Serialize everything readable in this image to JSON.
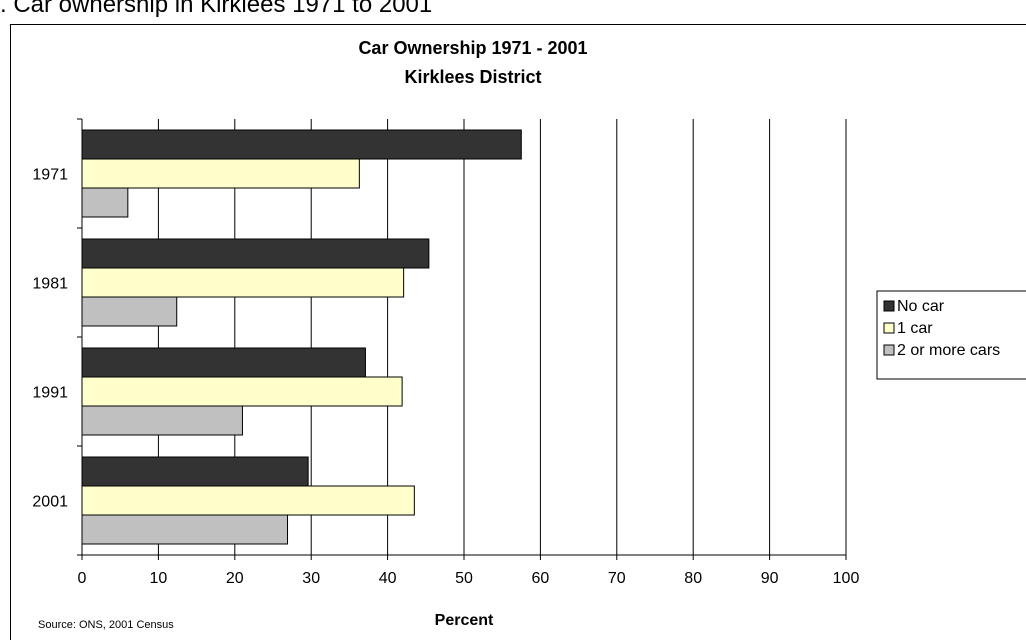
{
  "page": {
    "heading": ". Car ownership in Kirklees 1971 to 2001"
  },
  "chart_data": {
    "type": "bar",
    "orientation": "horizontal",
    "title": "Car Ownership 1971 - 2001",
    "subtitle": "Kirklees District",
    "xlabel": "Percent",
    "ylabel": "",
    "categories": [
      "1971",
      "1981",
      "1991",
      "2001"
    ],
    "series": [
      {
        "name": "No car",
        "values": [
          57.5,
          45.4,
          37.1,
          29.6
        ],
        "color": "#333333"
      },
      {
        "name": "1 car",
        "values": [
          36.3,
          42.1,
          41.9,
          43.5
        ],
        "color": "#FFFFCC"
      },
      {
        "name": "2 or more cars",
        "values": [
          6.0,
          12.4,
          21.0,
          26.9
        ],
        "color": "#C0C0C0"
      }
    ],
    "xlim": [
      0,
      100
    ],
    "xticks": [
      0,
      10,
      20,
      30,
      40,
      50,
      60,
      70,
      80,
      90,
      100
    ],
    "grid": "vertical",
    "legend": "right",
    "source": "Source: ONS, 2001 Census"
  }
}
